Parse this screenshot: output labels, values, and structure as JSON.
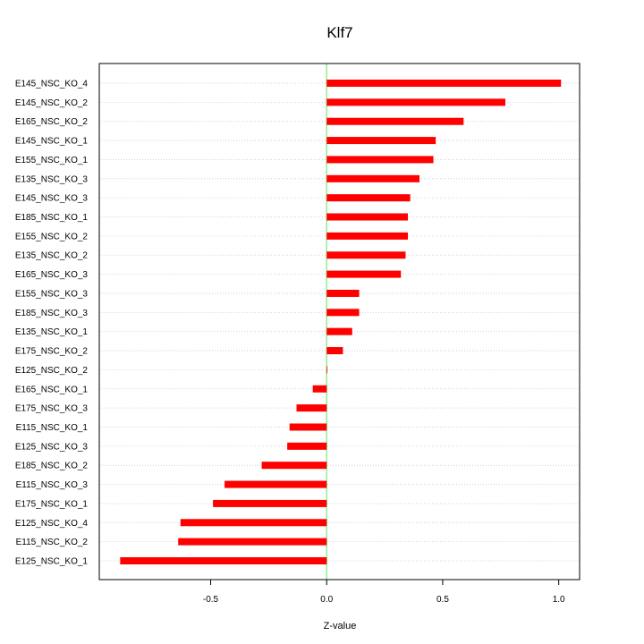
{
  "chart_data": {
    "type": "bar",
    "orientation": "horizontal",
    "title": "Klf7",
    "xlabel": "Z-value",
    "ylabel": "",
    "xlim": [
      -0.98,
      1.09
    ],
    "x_ticks": [
      -0.5,
      0.0,
      0.5,
      1.0
    ],
    "x_tick_labels": [
      "-0.5",
      "0.0",
      "0.5",
      "1.0"
    ],
    "grid": "horizontal dotted",
    "bar_color": "#ff0000",
    "zero_line_color": "#90ee90",
    "categories": [
      "E145_NSC_KO_4",
      "E145_NSC_KO_2",
      "E165_NSC_KO_2",
      "E145_NSC_KO_1",
      "E155_NSC_KO_1",
      "E135_NSC_KO_3",
      "E145_NSC_KO_3",
      "E185_NSC_KO_1",
      "E155_NSC_KO_2",
      "E135_NSC_KO_2",
      "E165_NSC_KO_3",
      "E155_NSC_KO_3",
      "E185_NSC_KO_3",
      "E135_NSC_KO_1",
      "E175_NSC_KO_2",
      "E125_NSC_KO_2",
      "E165_NSC_KO_1",
      "E175_NSC_KO_3",
      "E115_NSC_KO_1",
      "E125_NSC_KO_3",
      "E185_NSC_KO_2",
      "E115_NSC_KO_3",
      "E175_NSC_KO_1",
      "E125_NSC_KO_4",
      "E115_NSC_KO_2",
      "E125_NSC_KO_1"
    ],
    "values": [
      1.01,
      0.77,
      0.59,
      0.47,
      0.46,
      0.4,
      0.36,
      0.35,
      0.35,
      0.34,
      0.32,
      0.14,
      0.14,
      0.11,
      0.07,
      0.0,
      -0.06,
      -0.13,
      -0.16,
      -0.17,
      -0.28,
      -0.44,
      -0.49,
      -0.63,
      -0.64,
      -0.89
    ]
  }
}
